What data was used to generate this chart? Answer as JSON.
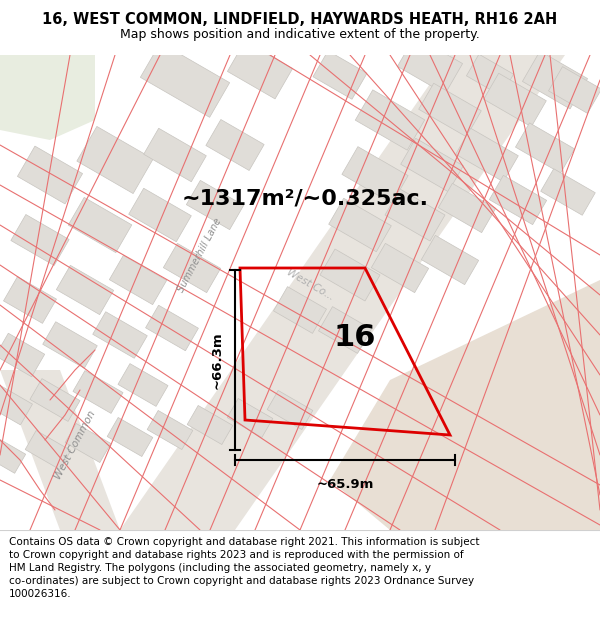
{
  "title_line1": "16, WEST COMMON, LINDFIELD, HAYWARDS HEATH, RH16 2AH",
  "title_line2": "Map shows position and indicative extent of the property.",
  "area_text": "~1317m²/~0.325ac.",
  "property_number": "16",
  "dim_vertical": "~66.3m",
  "dim_horizontal": "~65.9m",
  "road_label_wc1": "West Common",
  "road_label_sl": "Summerhill Lane",
  "road_label_wc2": "West Common",
  "road_label_wc3": "West Co...",
  "footer_text": "Contains OS data © Crown copyright and database right 2021. This information is subject\nto Crown copyright and database rights 2023 and is reproduced with the permission of\nHM Land Registry. The polygons (including the associated geometry, namely x, y\nco-ordinates) are subject to Crown copyright and database rights 2023 Ordnance Survey\n100026316.",
  "map_bg": "#f5f3f0",
  "building_fill": "#e0ddd8",
  "building_edge": "#c8c5c0",
  "road_fill": "#ebe8e3",
  "red_line": "#e87070",
  "red_prop": "#dd0000",
  "beige_area": "#e8dfd4",
  "green_area": "#e8ede0",
  "title_bg": "#ffffff",
  "footer_bg": "#ffffff",
  "dim_line_color": "#000000",
  "prop_num_size": 22,
  "area_text_size": 16,
  "title1_size": 10.5,
  "title2_size": 9.0,
  "footer_size": 7.5
}
